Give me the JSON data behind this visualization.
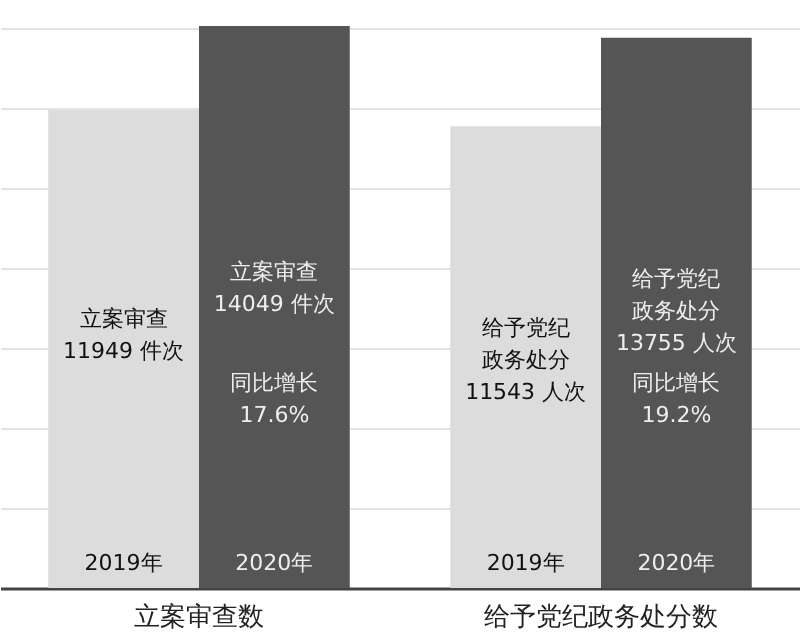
{
  "chart_data": {
    "type": "bar",
    "categories": [
      "立案审查数",
      "给予党纪政务处分数"
    ],
    "series": [
      {
        "name": "2019年",
        "color": "#dcdcdc",
        "values": [
          11949,
          11543
        ],
        "value_labels": [
          "立案审查\n11949 件次",
          "给予党纪政务处分\n11543 人次"
        ]
      },
      {
        "name": "2020年",
        "color": "#555555",
        "values": [
          14049,
          13755
        ],
        "value_labels": [
          "立案审查\n14049 件次",
          "给予党纪政务处分\n13755 人次"
        ]
      }
    ],
    "annotations": [
      {
        "text": "同比增长\n17.6%",
        "x": "立案审查数",
        "y": 5100
      },
      {
        "text": "同比增长\n19.2%",
        "x": "给予党纪政务处分数",
        "y": 5100
      }
    ],
    "ylim": [
      0,
      14700
    ],
    "yticks": [
      {
        "value": 2000,
        "label": null
      },
      {
        "value": 4000,
        "label": null
      },
      {
        "value": 6000,
        "label": null
      },
      {
        "value": 8000,
        "label": null
      },
      {
        "value": 10000,
        "label": null
      },
      {
        "value": 12000,
        "label": null
      },
      {
        "value": 14000,
        "label": null
      }
    ],
    "grid": "y"
  }
}
